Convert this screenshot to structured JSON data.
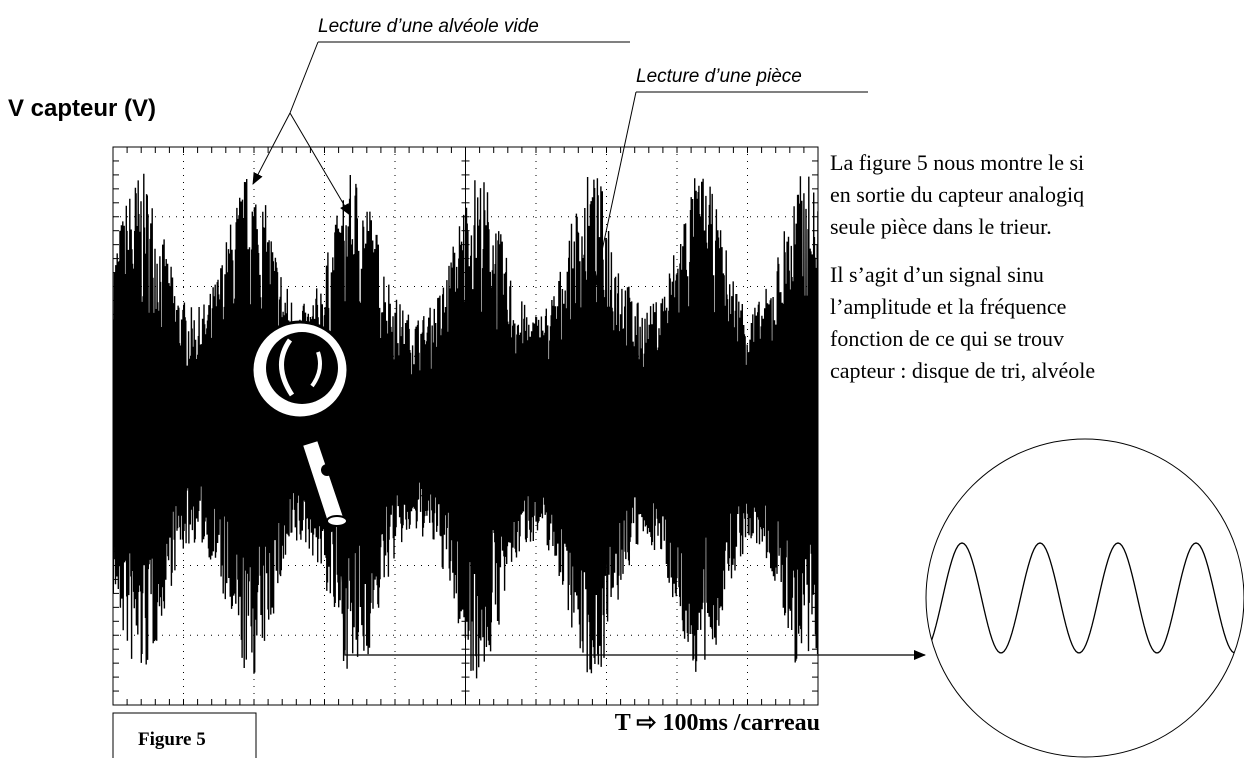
{
  "annotations": {
    "empty_cell": "Lecture d’une alvéole vide",
    "piece": "Lecture d’une pièce"
  },
  "axis_label": "V capteur (V)",
  "figure_label": "Figure 5",
  "time_base": "T ⇨ 100ms /carreau",
  "paragraphs": [
    [
      "La figure 5 nous montre le si",
      "en sortie du capteur analogiq",
      "seule pièce dans le trieur."
    ],
    [
      "Il  s’agit  d’un  signal  sinu",
      "l’amplitude et la fréquence",
      "fonction de ce qui se trouv",
      "capteur : disque de tri, alvéole"
    ]
  ]
}
